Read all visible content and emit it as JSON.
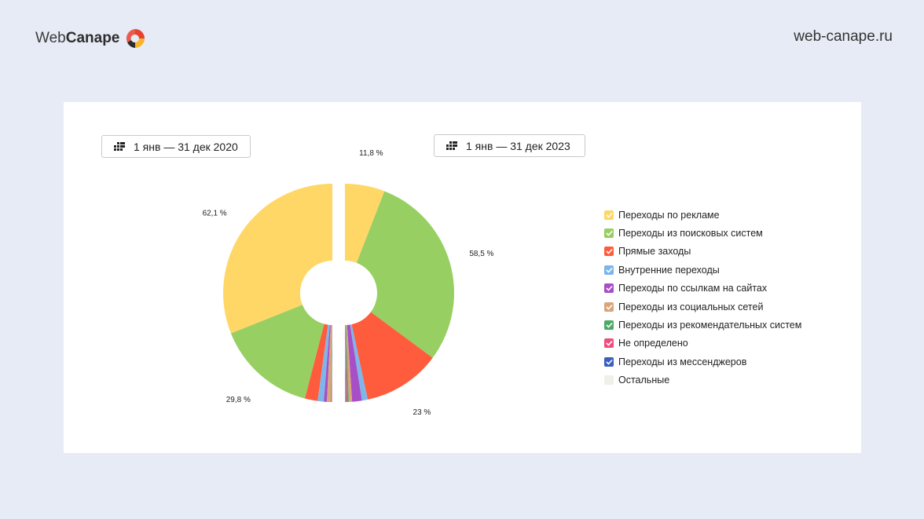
{
  "header": {
    "logo_web": "Web",
    "logo_canape": "Canape",
    "site": "web-canape.ru"
  },
  "periods": [
    {
      "label": "1 янв — 31 дек 2020"
    },
    {
      "label": "1 янв — 31 дек 2023"
    }
  ],
  "colors": {
    "ads": "#ffd766",
    "search": "#98cf63",
    "direct": "#ff5c3d",
    "internal": "#7fb6ea",
    "links": "#a74fc6",
    "social": "#d9a57a",
    "recommend": "#4caa68",
    "undefined": "#f04e7f",
    "messengers": "#3c5fbe",
    "other": "#f0efe9"
  },
  "chart_data": {
    "type": "pie",
    "subtype": "split-donut",
    "categories": [
      "Переходы по рекламе",
      "Переходы из поисковых систем",
      "Прямые заходы",
      "Внутренние переходы",
      "Переходы по ссылкам на сайтах",
      "Переходы из социальных сетей",
      "Переходы из рекомендательных систем",
      "Не определено",
      "Переходы из мессенджеров",
      "Остальные"
    ],
    "series": [
      {
        "period": "1 янв — 31 дек 2020",
        "half": "left",
        "values": [
          62.1,
          29.8,
          3.8,
          1.8,
          0.9,
          1.2,
          0.2,
          0.1,
          0.05,
          0.05
        ]
      },
      {
        "period": "1 янв — 31 дек 2023",
        "half": "right",
        "values": [
          11.8,
          58.5,
          23.0,
          1.7,
          2.9,
          1.0,
          0.5,
          0.3,
          0.2,
          0.1
        ]
      }
    ],
    "labels": [
      {
        "text": "62,1 %",
        "series": 0,
        "index": 0
      },
      {
        "text": "29,8 %",
        "series": 0,
        "index": 1
      },
      {
        "text": "11,8 %",
        "series": 1,
        "index": 0
      },
      {
        "text": "58,5 %",
        "series": 1,
        "index": 1
      },
      {
        "text": "23 %",
        "series": 1,
        "index": 2
      }
    ],
    "legend_placement": "right"
  }
}
